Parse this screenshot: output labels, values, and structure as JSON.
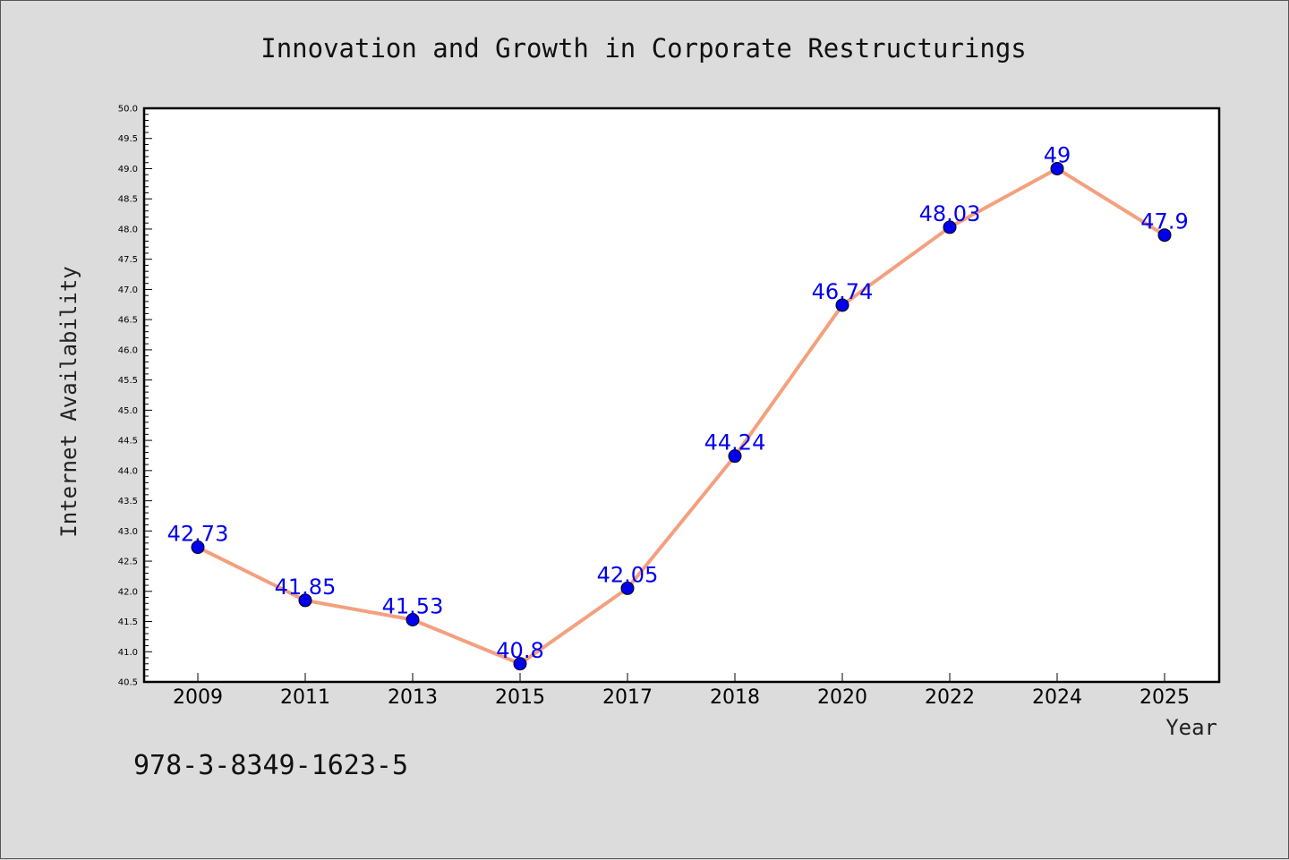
{
  "chart_data": {
    "type": "line",
    "title": "Innovation and Growth in Corporate Restructurings",
    "xlabel": "Year",
    "ylabel": "Internet Availability",
    "categories": [
      "2009",
      "2011",
      "2013",
      "2015",
      "2017",
      "2018",
      "2020",
      "2022",
      "2024",
      "2025"
    ],
    "values": [
      42.73,
      41.85,
      41.53,
      40.8,
      42.05,
      44.24,
      46.74,
      48.03,
      49,
      47.9
    ],
    "data_labels": [
      "42.73",
      "41.85",
      "41.53",
      "40.8",
      "42.05",
      "44.24",
      "46.74",
      "48.03",
      "49",
      "47.9"
    ],
    "ylim": [
      40.5,
      50.0
    ],
    "yticks": [
      "40.5",
      "41.0",
      "41.5",
      "42.0",
      "42.5",
      "43.0",
      "43.5",
      "44.0",
      "44.5",
      "45.0",
      "45.5",
      "46.0",
      "46.5",
      "47.0",
      "47.5",
      "48.0",
      "48.5",
      "49.0",
      "49.5",
      "50.0"
    ],
    "grid": false,
    "legend": "none",
    "line_color": "#f4a07e",
    "marker_color": "#0000ee",
    "label_color": "#0000ee"
  },
  "annotation": {
    "isbn": "978-3-8349-1623-5"
  }
}
